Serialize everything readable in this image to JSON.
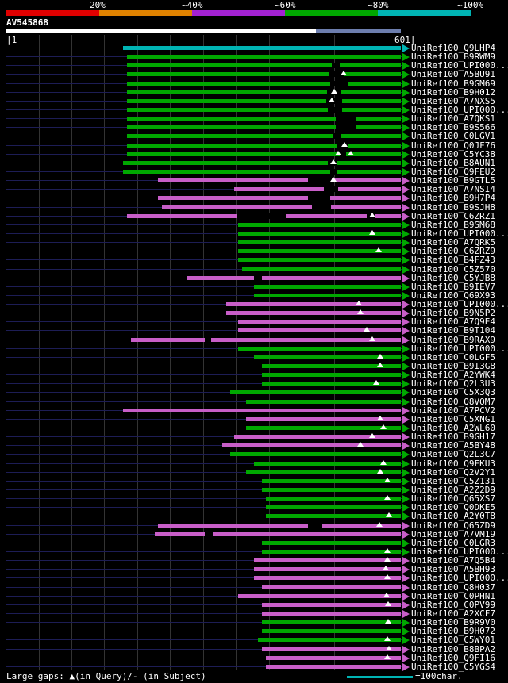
{
  "chart_data": {
    "type": "table",
    "title": "BLAST-style similarity overview of query AV545868 against UniRef100 hits",
    "query": {
      "name": "AV545868",
      "length": 601,
      "start_label": "|1",
      "end_label": "601|"
    },
    "x_axis": {
      "min": 1,
      "max": 601,
      "unit": "chars",
      "tick_interval": 50,
      "grid": true
    },
    "legend": [
      {
        "label": "20%",
        "color": "#e00000"
      },
      {
        "label": "~40%",
        "color": "#e08200"
      },
      {
        "label": "~60%",
        "color": "#a322d2"
      },
      {
        "label": "~80%",
        "color": "#00a800"
      },
      {
        "label": "~100%",
        "color": "#00b4b4"
      }
    ],
    "bar_colors": {
      "green": "#00a800",
      "magenta": "#c85ec8",
      "cyan": "#00b4b4"
    },
    "query_bar_segments": [
      {
        "start": 1,
        "end": 472,
        "color": "#ffffff"
      },
      {
        "start": 472,
        "end": 601,
        "color": "#6d7eae"
      }
    ],
    "hits": [
      {
        "label": "UniRef100_Q9LHP4",
        "color": "cyan",
        "start": 178,
        "end": 601
      },
      {
        "label": "UniRef100_B9RWM9",
        "color": "green",
        "start": 184,
        "end": 601
      },
      {
        "label": "UniRef100_UPI000...",
        "color": "green",
        "start": 184,
        "end": 601,
        "gaps": [
          [
            496,
            12
          ]
        ]
      },
      {
        "label": "UniRef100_A5BU91",
        "color": "green",
        "start": 184,
        "end": 601,
        "gaps": [
          [
            491,
            24
          ]
        ],
        "tris": [
          514
        ]
      },
      {
        "label": "UniRef100_B9GM69",
        "color": "green",
        "start": 184,
        "end": 601,
        "gaps": [
          [
            494,
            27
          ]
        ]
      },
      {
        "label": "UniRef100_B9H012",
        "color": "green",
        "start": 184,
        "end": 601,
        "gaps": [
          [
            489,
            22
          ]
        ],
        "tris": [
          499
        ]
      },
      {
        "label": "UniRef100_A7NXS5",
        "color": "green",
        "start": 184,
        "end": 601,
        "gaps": [
          [
            488,
            24
          ]
        ],
        "tris": [
          496
        ]
      },
      {
        "label": "UniRef100_UPI000...",
        "color": "green",
        "start": 184,
        "end": 601,
        "gaps": [
          [
            490,
            22
          ]
        ]
      },
      {
        "label": "UniRef100_A7QKS1",
        "color": "green",
        "start": 184,
        "end": 601,
        "gaps": [
          [
            502,
            30
          ]
        ]
      },
      {
        "label": "UniRef100_B9S566",
        "color": "green",
        "start": 184,
        "end": 601,
        "gaps": [
          [
            502,
            30
          ]
        ]
      },
      {
        "label": "UniRef100_C0LGV1",
        "color": "green",
        "start": 184,
        "end": 601,
        "gaps": [
          [
            497,
            12
          ]
        ]
      },
      {
        "label": "UniRef100_Q0JF76",
        "color": "green",
        "start": 184,
        "end": 601,
        "gaps": [
          [
            503,
            17
          ]
        ],
        "tris": [
          515
        ]
      },
      {
        "label": "UniRef100_C5YC38",
        "color": "green",
        "start": 184,
        "end": 601,
        "gaps": [
          [
            508,
            10
          ]
        ],
        "tris": [
          506,
          525
        ]
      },
      {
        "label": "UniRef100_B8AUN1",
        "color": "green",
        "start": 179,
        "end": 601,
        "gaps": [
          [
            490,
            14
          ]
        ],
        "tris": [
          498
        ]
      },
      {
        "label": "UniRef100_Q9FEU2",
        "color": "green",
        "start": 179,
        "end": 601,
        "gaps": [
          [
            494,
            10
          ]
        ]
      },
      {
        "label": "UniRef100_B9GTL5",
        "color": "magenta",
        "start": 232,
        "end": 601,
        "gaps": [
          [
            460,
            36
          ]
        ],
        "tris": [
          498
        ]
      },
      {
        "label": "UniRef100_A7NSI4",
        "color": "magenta",
        "start": 347,
        "end": 601,
        "gaps": [
          [
            484,
            22
          ]
        ]
      },
      {
        "label": "UniRef100_B9H7P4",
        "color": "magenta",
        "start": 232,
        "end": 601,
        "gaps": [
          [
            460,
            34
          ]
        ]
      },
      {
        "label": "UniRef100_B9SJH8",
        "color": "magenta",
        "start": 238,
        "end": 601,
        "gaps": [
          [
            466,
            29
          ]
        ]
      },
      {
        "label": "UniRef100_C6ZRZ1",
        "color": "magenta",
        "start": 184,
        "end": 601,
        "gaps": [
          [
            351,
            75
          ],
          [
            549,
            12
          ]
        ],
        "tris": [
          558
        ]
      },
      {
        "label": "UniRef100_B9SM68",
        "color": "green",
        "start": 354,
        "end": 601
      },
      {
        "label": "UniRef100_UPI000...",
        "color": "green",
        "start": 354,
        "end": 601,
        "tris": [
          558
        ]
      },
      {
        "label": "UniRef100_A7QRK5",
        "color": "green",
        "start": 354,
        "end": 601
      },
      {
        "label": "UniRef100_C6ZRZ9",
        "color": "green",
        "start": 354,
        "end": 601,
        "tris": [
          567
        ]
      },
      {
        "label": "UniRef100_B4FZ43",
        "color": "green",
        "start": 354,
        "end": 601
      },
      {
        "label": "UniRef100_C5Z570",
        "color": "green",
        "start": 360,
        "end": 601
      },
      {
        "label": "UniRef100_C5YJB8",
        "color": "magenta",
        "start": 275,
        "end": 601,
        "gaps": [
          [
            378,
            12
          ]
        ]
      },
      {
        "label": "UniRef100_B9IEV7",
        "color": "green",
        "start": 378,
        "end": 601
      },
      {
        "label": "UniRef100_Q69X93",
        "color": "green",
        "start": 378,
        "end": 601
      },
      {
        "label": "UniRef100_UPI000...",
        "color": "magenta",
        "start": 335,
        "end": 601,
        "tris": [
          537
        ]
      },
      {
        "label": "UniRef100_B9N5P2",
        "color": "magenta",
        "start": 335,
        "end": 601,
        "tris": [
          540
        ]
      },
      {
        "label": "UniRef100_A7Q9E4",
        "color": "magenta",
        "start": 354,
        "end": 601
      },
      {
        "label": "UniRef100_B9T104",
        "color": "magenta",
        "start": 354,
        "end": 601,
        "tris": [
          549
        ]
      },
      {
        "label": "UniRef100_B9RAX9",
        "color": "magenta",
        "start": 190,
        "end": 601,
        "gaps": [
          [
            303,
            10
          ]
        ],
        "tris": [
          558
        ]
      },
      {
        "label": "UniRef100_UPI000...",
        "color": "green",
        "start": 354,
        "end": 601
      },
      {
        "label": "UniRef100_C0LGF5",
        "color": "green",
        "start": 378,
        "end": 601,
        "tris": [
          570
        ]
      },
      {
        "label": "UniRef100_B9I3G8",
        "color": "green",
        "start": 390,
        "end": 601,
        "tris": [
          570
        ]
      },
      {
        "label": "UniRef100_A2YWK4",
        "color": "green",
        "start": 390,
        "end": 601
      },
      {
        "label": "UniRef100_Q2L3U3",
        "color": "green",
        "start": 390,
        "end": 601,
        "tris": [
          564
        ]
      },
      {
        "label": "UniRef100_C5X3Q3",
        "color": "green",
        "start": 341,
        "end": 601
      },
      {
        "label": "UniRef100_Q8VQM7",
        "color": "green",
        "start": 365,
        "end": 601
      },
      {
        "label": "UniRef100_A7PCV2",
        "color": "magenta",
        "start": 178,
        "end": 601
      },
      {
        "label": "UniRef100_C5XNG1",
        "color": "magenta",
        "start": 365,
        "end": 601,
        "tris": [
          570
        ]
      },
      {
        "label": "UniRef100_A2WL60",
        "color": "green",
        "start": 365,
        "end": 601,
        "tris": [
          575
        ]
      },
      {
        "label": "UniRef100_B9GH17",
        "color": "magenta",
        "start": 347,
        "end": 601,
        "tris": [
          558
        ]
      },
      {
        "label": "UniRef100_A5BY48",
        "color": "magenta",
        "start": 329,
        "end": 601,
        "tris": [
          540
        ]
      },
      {
        "label": "UniRef100_Q2L3C7",
        "color": "green",
        "start": 341,
        "end": 601
      },
      {
        "label": "UniRef100_Q9FKU3",
        "color": "green",
        "start": 378,
        "end": 601,
        "tris": [
          575
        ]
      },
      {
        "label": "UniRef100_Q2V2Y1",
        "color": "green",
        "start": 365,
        "end": 601,
        "tris": [
          570
        ]
      },
      {
        "label": "UniRef100_C5Z131",
        "color": "green",
        "start": 390,
        "end": 601,
        "tris": [
          580
        ]
      },
      {
        "label": "UniRef100_A2Z2D9",
        "color": "green",
        "start": 390,
        "end": 601
      },
      {
        "label": "UniRef100_Q65XS7",
        "color": "green",
        "start": 396,
        "end": 601,
        "tris": [
          581
        ]
      },
      {
        "label": "UniRef100_Q0DKE5",
        "color": "green",
        "start": 396,
        "end": 601
      },
      {
        "label": "UniRef100_A2Y0T8",
        "color": "green",
        "start": 396,
        "end": 601,
        "tris": [
          583
        ]
      },
      {
        "label": "UniRef100_Q65ZD9",
        "color": "magenta",
        "start": 232,
        "end": 601,
        "gaps": [
          [
            460,
            22
          ]
        ],
        "tris": [
          569
        ]
      },
      {
        "label": "UniRef100_A7VM19",
        "color": "magenta",
        "start": 227,
        "end": 601,
        "gaps": [
          [
            303,
            12
          ]
        ]
      },
      {
        "label": "UniRef100_C0LGR3",
        "color": "green",
        "start": 390,
        "end": 601
      },
      {
        "label": "UniRef100_UPI000...",
        "color": "green",
        "start": 390,
        "end": 601,
        "tris": [
          581
        ]
      },
      {
        "label": "UniRef100_A7Q5B4",
        "color": "magenta",
        "start": 378,
        "end": 601,
        "tris": [
          581
        ]
      },
      {
        "label": "UniRef100_A5BH93",
        "color": "magenta",
        "start": 378,
        "end": 601,
        "tris": [
          578
        ]
      },
      {
        "label": "UniRef100_UPI000...",
        "color": "magenta",
        "start": 378,
        "end": 601,
        "tris": [
          580
        ]
      },
      {
        "label": "UniRef100_Q8H037",
        "color": "magenta",
        "start": 390,
        "end": 601
      },
      {
        "label": "UniRef100_C0PHN1",
        "color": "magenta",
        "start": 354,
        "end": 601,
        "tris": [
          579
        ]
      },
      {
        "label": "UniRef100_C0PV99",
        "color": "magenta",
        "start": 390,
        "end": 601,
        "tris": [
          582
        ]
      },
      {
        "label": "UniRef100_A2XCF7",
        "color": "magenta",
        "start": 390,
        "end": 601
      },
      {
        "label": "UniRef100_B9R9V0",
        "color": "green",
        "start": 390,
        "end": 601,
        "tris": [
          582
        ]
      },
      {
        "label": "UniRef100_B9H072",
        "color": "green",
        "start": 390,
        "end": 601
      },
      {
        "label": "UniRef100_C5WY01",
        "color": "green",
        "start": 384,
        "end": 601,
        "tris": [
          580
        ]
      },
      {
        "label": "UniRef100_B8BPA2",
        "color": "magenta",
        "start": 390,
        "end": 601,
        "tris": [
          583
        ]
      },
      {
        "label": "UniRef100_Q9FI16",
        "color": "magenta",
        "start": 396,
        "end": 601,
        "tris": [
          581
        ]
      },
      {
        "label": "UniRef100_C5YGS4",
        "color": "magenta",
        "start": 396,
        "end": 601
      }
    ]
  },
  "footer": {
    "gaps_legend": "Large gaps: ▲(in Query)/- (in Subject)",
    "scale_legend": "=100char."
  },
  "ui_colors": {
    "background": "#000000",
    "text": "#ffffff",
    "grid": "#333333",
    "row_line": "#1d1d55"
  }
}
